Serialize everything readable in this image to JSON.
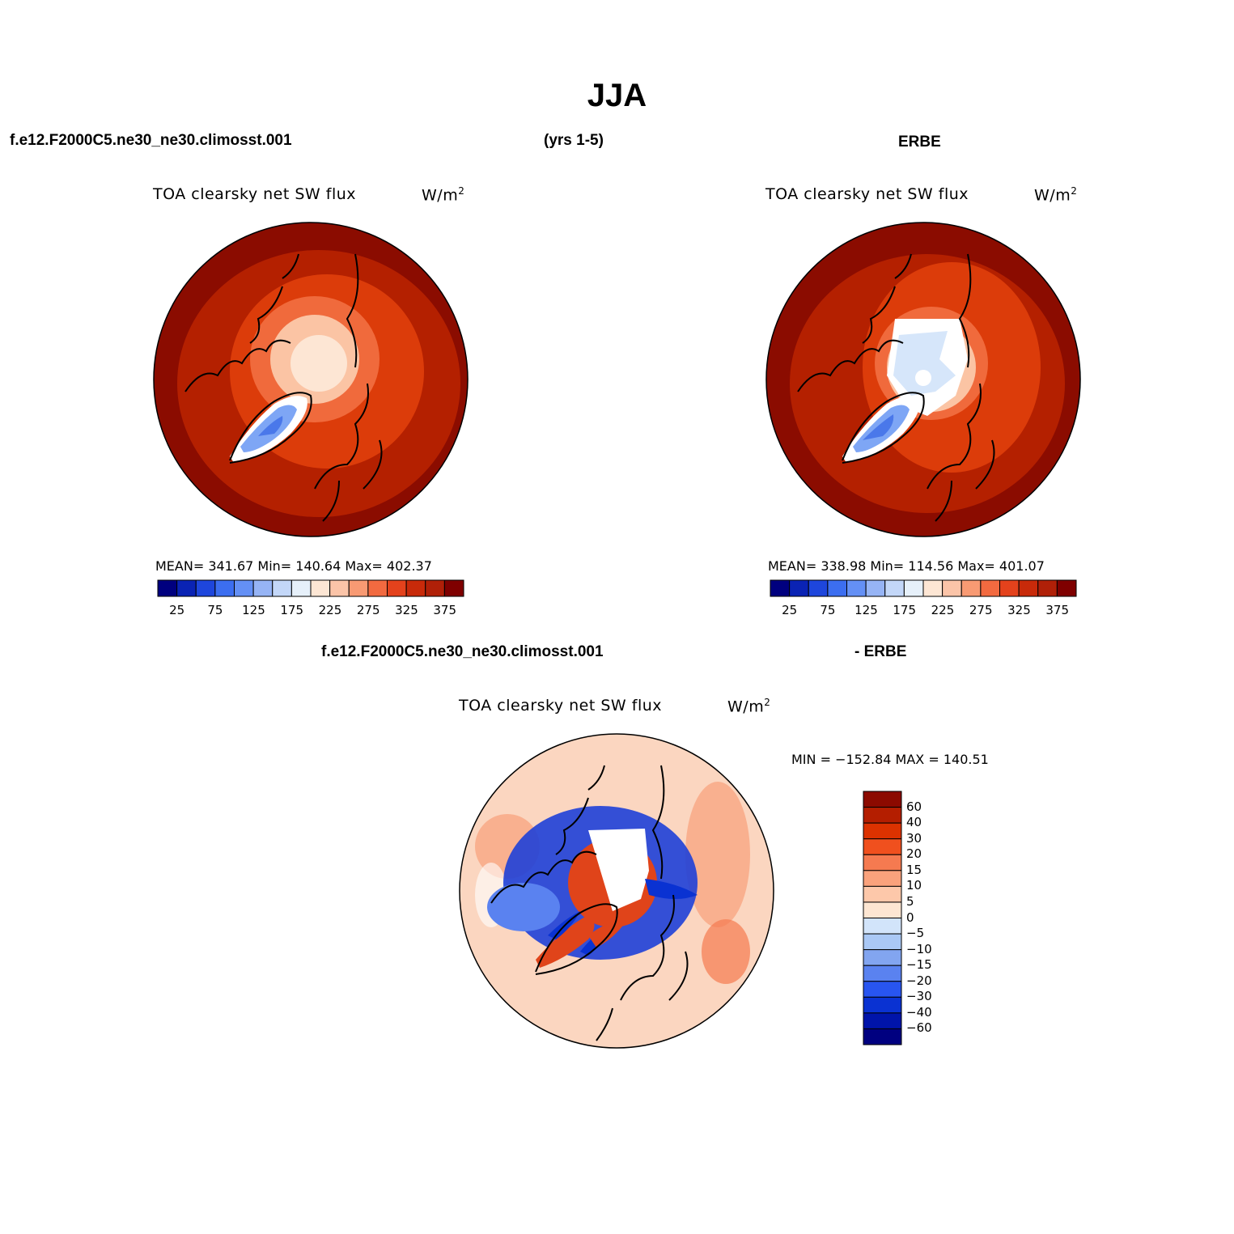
{
  "main_title": "JJA",
  "case_name": "f.e12.F2000C5.ne30_ne30.climosst.001",
  "years": "(yrs 1-5)",
  "obs_name": "ERBE",
  "diff_case_name": "f.e12.F2000C5.ne30_ne30.climosst.001",
  "diff_obs_name": "- ERBE",
  "panels": [
    {
      "id": "model",
      "variable": "TOA clearsky net SW flux",
      "units": "W/m",
      "units_sup": "2",
      "stats": "MEAN= 341.67   Min= 140.64   Max= 402.37"
    },
    {
      "id": "obs",
      "variable": "TOA clearsky net SW flux",
      "units": "W/m",
      "units_sup": "2",
      "stats": "MEAN= 338.98   Min= 114.56   Max= 401.07"
    },
    {
      "id": "diff",
      "variable": "TOA clearsky net SW flux",
      "units": "W/m",
      "units_sup": "2",
      "stats": "MIN = −152.84 MAX = 140.51"
    }
  ],
  "colorbar_abs": {
    "labels": [
      "25",
      "75",
      "125",
      "175",
      "225",
      "275",
      "325",
      "375"
    ],
    "colors": [
      "#00007f",
      "#0a23b4",
      "#1e46dc",
      "#3c6ef0",
      "#6490f5",
      "#96b4f5",
      "#c3d7f8",
      "#e6f0fa",
      "#fde6d4",
      "#fbc4a8",
      "#f89a73",
      "#f26a40",
      "#e4421c",
      "#c82a0a",
      "#b02008",
      "#7f0000"
    ]
  },
  "colorbar_diff": {
    "labels": [
      "60",
      "40",
      "30",
      "20",
      "15",
      "10",
      "5",
      "0",
      "−5",
      "−10",
      "−15",
      "−20",
      "−30",
      "−40",
      "−60"
    ],
    "colors": [
      "#8c0a00",
      "#b41e00",
      "#dc3200",
      "#f0501e",
      "#f57a50",
      "#faa27c",
      "#fdc8aa",
      "#fde6d2",
      "#d2e4fa",
      "#aac8f5",
      "#82a5f0",
      "#5a82f0",
      "#2855f0",
      "#0a32d2",
      "#0014aa",
      "#000080"
    ]
  },
  "map_colors": {
    "abs_outer": "#8b0c00",
    "abs_mid": "#b42000",
    "abs_inner": "#dc3c0a",
    "abs_light": "#f06a3c",
    "abs_pale": "#fbc4a4",
    "abs_cream": "#fde6d4",
    "greenland_blue": "#7ea6f5",
    "greenland_core": "#4a78ea",
    "diff_bg": "#fbd6c0",
    "diff_red": "#e0441a",
    "diff_blue": "#1e40d8"
  }
}
